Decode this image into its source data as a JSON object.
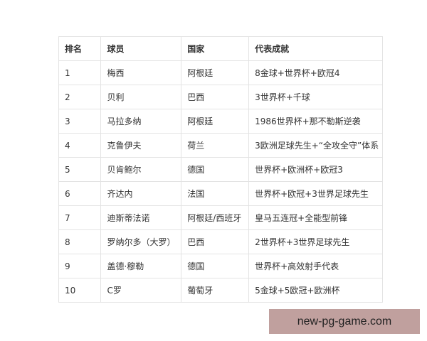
{
  "table": {
    "headers": [
      "排名",
      "球员",
      "国家",
      "代表成就"
    ],
    "rows": [
      [
        "1",
        "梅西",
        "阿根廷",
        "8金球+世界杯+欧冠4"
      ],
      [
        "2",
        "贝利",
        "巴西",
        "3世界杯+千球"
      ],
      [
        "3",
        "马拉多纳",
        "阿根廷",
        "1986世界杯+那不勒斯逆袭"
      ],
      [
        "4",
        "克鲁伊夫",
        "荷兰",
        "3欧洲足球先生+“全攻全守”体系"
      ],
      [
        "5",
        "贝肯鲍尔",
        "德国",
        "世界杯+欧洲杯+欧冠3"
      ],
      [
        "6",
        "齐达内",
        "法国",
        "世界杯+欧冠+3世界足球先生"
      ],
      [
        "7",
        "迪斯蒂法诺",
        "阿根廷/西班牙",
        "皇马五连冠+全能型前锋"
      ],
      [
        "8",
        "罗纳尔多（大罗）",
        "巴西",
        "2世界杯+3世界足球先生"
      ],
      [
        "9",
        "盖德·穆勒",
        "德国",
        "世界杯+高效射手代表"
      ],
      [
        "10",
        "C罗",
        "葡萄牙",
        "5金球+5欧冠+欧洲杯"
      ]
    ]
  },
  "watermark": "new-pg-game.com"
}
